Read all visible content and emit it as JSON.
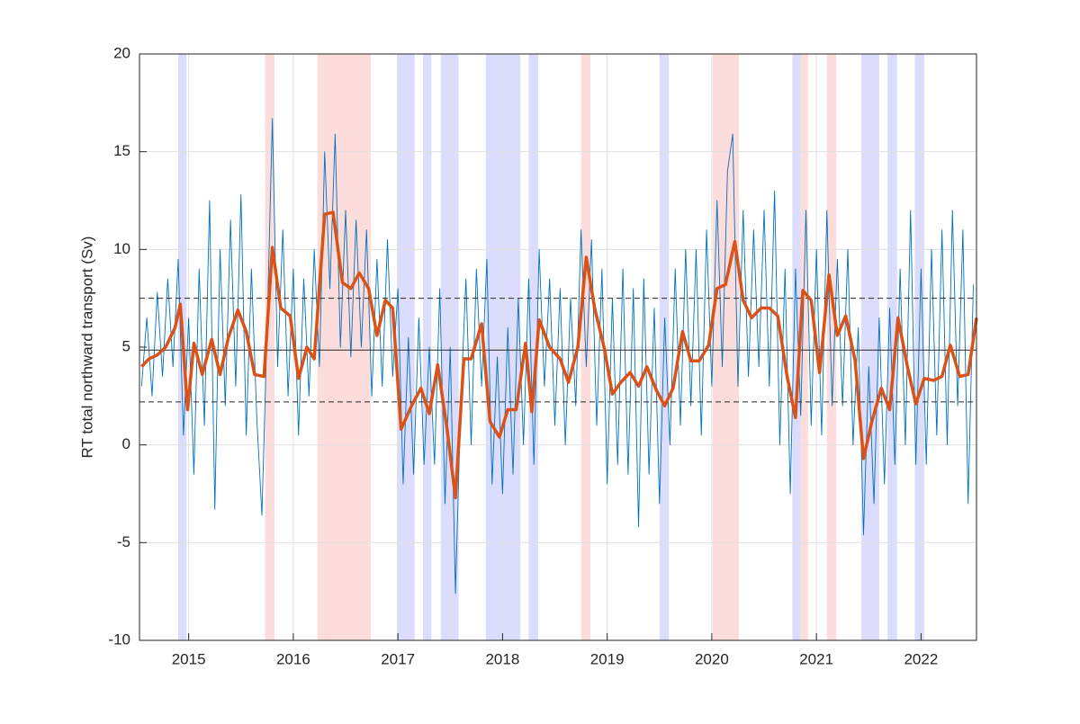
{
  "chart_data": {
    "type": "line",
    "y_label": "RT total northward transport (Sv)",
    "xlim": [
      2014.53,
      2022.53
    ],
    "xticks": [
      2015,
      2016,
      2017,
      2018,
      2019,
      2020,
      2021,
      2022
    ],
    "ylim": [
      -10,
      20
    ],
    "yticks": [
      -10,
      -5,
      0,
      5,
      10,
      15,
      20
    ],
    "grid": true,
    "reference_lines": [
      {
        "value": 4.85,
        "style": "solid",
        "color": "#262626"
      },
      {
        "value": 7.5,
        "style": "dashed",
        "color": "#262626"
      },
      {
        "value": 2.2,
        "style": "dashed",
        "color": "#262626"
      }
    ],
    "highlight_bands": [
      {
        "start": 2014.9,
        "end": 2014.98,
        "color": "#dcdcfc"
      },
      {
        "start": 2015.73,
        "end": 2015.82,
        "color": "#fddcdc"
      },
      {
        "start": 2016.23,
        "end": 2016.74,
        "color": "#fddcdc"
      },
      {
        "start": 2016.99,
        "end": 2017.16,
        "color": "#dcdcfc"
      },
      {
        "start": 2017.24,
        "end": 2017.32,
        "color": "#dcdcfc"
      },
      {
        "start": 2017.41,
        "end": 2017.58,
        "color": "#dcdcfc"
      },
      {
        "start": 2017.84,
        "end": 2018.17,
        "color": "#dcdcfc"
      },
      {
        "start": 2018.25,
        "end": 2018.34,
        "color": "#dcdcfc"
      },
      {
        "start": 2018.75,
        "end": 2018.84,
        "color": "#fddcdc"
      },
      {
        "start": 2019.5,
        "end": 2019.59,
        "color": "#dcdcfc"
      },
      {
        "start": 2020.01,
        "end": 2020.26,
        "color": "#fddcdc"
      },
      {
        "start": 2020.77,
        "end": 2020.85,
        "color": "#dcdcfc"
      },
      {
        "start": 2020.85,
        "end": 2020.92,
        "color": "#fddcdc"
      },
      {
        "start": 2021.1,
        "end": 2021.19,
        "color": "#fddcdc"
      },
      {
        "start": 2021.43,
        "end": 2021.6,
        "color": "#dcdcfc"
      },
      {
        "start": 2021.68,
        "end": 2021.77,
        "color": "#dcdcfc"
      },
      {
        "start": 2021.94,
        "end": 2022.03,
        "color": "#dcdcfc"
      }
    ],
    "series": [
      {
        "color": "#0072bd",
        "width": 0.9,
        "x": [
          2014.55,
          2014.6,
          2014.65,
          2014.7,
          2014.75,
          2014.8,
          2014.85,
          2014.9,
          2014.95,
          2015.0,
          2015.05,
          2015.1,
          2015.15,
          2015.2,
          2015.25,
          2015.3,
          2015.35,
          2015.4,
          2015.45,
          2015.5,
          2015.55,
          2015.6,
          2015.65,
          2015.7,
          2015.75,
          2015.8,
          2015.85,
          2015.9,
          2015.95,
          2016.0,
          2016.05,
          2016.1,
          2016.15,
          2016.2,
          2016.25,
          2016.3,
          2016.35,
          2016.4,
          2016.45,
          2016.5,
          2016.55,
          2016.6,
          2016.65,
          2016.7,
          2016.75,
          2016.8,
          2016.85,
          2016.9,
          2016.95,
          2017.0,
          2017.05,
          2017.1,
          2017.15,
          2017.2,
          2017.25,
          2017.3,
          2017.35,
          2017.4,
          2017.45,
          2017.5,
          2017.55,
          2017.6,
          2017.65,
          2017.7,
          2017.75,
          2017.8,
          2017.85,
          2017.9,
          2017.95,
          2018.0,
          2018.05,
          2018.1,
          2018.15,
          2018.2,
          2018.25,
          2018.3,
          2018.35,
          2018.4,
          2018.45,
          2018.5,
          2018.55,
          2018.6,
          2018.65,
          2018.7,
          2018.75,
          2018.8,
          2018.85,
          2018.9,
          2018.95,
          2019.0,
          2019.05,
          2019.1,
          2019.15,
          2019.2,
          2019.25,
          2019.3,
          2019.35,
          2019.4,
          2019.45,
          2019.5,
          2019.55,
          2019.6,
          2019.65,
          2019.7,
          2019.75,
          2019.8,
          2019.85,
          2019.9,
          2019.95,
          2020.0,
          2020.05,
          2020.1,
          2020.15,
          2020.2,
          2020.25,
          2020.3,
          2020.35,
          2020.4,
          2020.45,
          2020.5,
          2020.55,
          2020.6,
          2020.65,
          2020.7,
          2020.75,
          2020.8,
          2020.85,
          2020.9,
          2020.95,
          2021.0,
          2021.05,
          2021.1,
          2021.15,
          2021.2,
          2021.25,
          2021.3,
          2021.35,
          2021.4,
          2021.45,
          2021.5,
          2021.55,
          2021.6,
          2021.65,
          2021.7,
          2021.75,
          2021.8,
          2021.85,
          2021.9,
          2021.95,
          2022.0,
          2022.05,
          2022.1,
          2022.15,
          2022.2,
          2022.25,
          2022.3,
          2022.35,
          2022.4,
          2022.45,
          2022.5
        ],
        "values": [
          3,
          6.5,
          2.5,
          7.8,
          3.5,
          8.5,
          4,
          9.5,
          0.5,
          6.5,
          -1.5,
          9,
          1,
          12.5,
          -3.3,
          10,
          2,
          11.5,
          3,
          12.8,
          0.5,
          9,
          1.5,
          -3.6,
          6,
          16.7,
          4,
          11,
          2.5,
          9,
          0.5,
          8.5,
          2.5,
          10,
          4,
          15,
          8,
          15.9,
          5,
          12,
          4.5,
          11.5,
          5,
          11,
          2.5,
          9.5,
          3,
          10.5,
          3.5,
          8,
          -2,
          5.5,
          -1.5,
          6.5,
          -1,
          5,
          -1,
          8,
          -3,
          5,
          -7.6,
          2,
          8.5,
          0,
          9,
          3,
          9.5,
          -2,
          4.5,
          -2.5,
          6,
          -1.5,
          7.5,
          0,
          8.5,
          -1,
          10,
          3,
          8.5,
          1,
          8,
          0,
          7.5,
          2,
          11,
          4,
          10.5,
          1,
          9,
          -2,
          7.5,
          -1,
          9,
          -1.5,
          8,
          -4.2,
          8.5,
          -1.5,
          7,
          -3,
          6.5,
          0,
          9,
          1,
          10,
          2,
          10,
          0.5,
          11,
          3,
          12.5,
          4,
          14,
          15.9,
          3,
          12,
          3.5,
          11,
          4,
          12,
          3,
          13,
          0,
          9,
          -2.5,
          9,
          1.5,
          12,
          1,
          10,
          0.5,
          12,
          2,
          9.5,
          2,
          10,
          0,
          6,
          -4.6,
          4,
          -3,
          6.5,
          -2,
          7,
          -1,
          9,
          0,
          12,
          -1,
          9,
          -1,
          10,
          0.5,
          11,
          0,
          12,
          2,
          11,
          -3,
          8.2
        ]
      },
      {
        "color": "#d95319",
        "width": 3.5,
        "x": [
          2014.55,
          2014.62,
          2014.7,
          2014.78,
          2014.87,
          2014.92,
          2014.99,
          2015.05,
          2015.13,
          2015.22,
          2015.3,
          2015.38,
          2015.47,
          2015.55,
          2015.63,
          2015.72,
          2015.8,
          2015.88,
          2015.97,
          2016.05,
          2016.13,
          2016.2,
          2016.3,
          2016.38,
          2016.47,
          2016.55,
          2016.63,
          2016.72,
          2016.8,
          2016.88,
          2016.95,
          2017.03,
          2017.13,
          2017.22,
          2017.3,
          2017.38,
          2017.47,
          2017.55,
          2017.63,
          2017.7,
          2017.8,
          2017.88,
          2017.97,
          2018.05,
          2018.13,
          2018.22,
          2018.28,
          2018.35,
          2018.45,
          2018.55,
          2018.63,
          2018.72,
          2018.8,
          2018.88,
          2018.97,
          2019.05,
          2019.13,
          2019.22,
          2019.3,
          2019.38,
          2019.47,
          2019.55,
          2019.63,
          2019.72,
          2019.8,
          2019.88,
          2019.97,
          2020.05,
          2020.13,
          2020.22,
          2020.3,
          2020.38,
          2020.47,
          2020.55,
          2020.63,
          2020.72,
          2020.8,
          2020.87,
          2020.95,
          2021.03,
          2021.12,
          2021.2,
          2021.28,
          2021.37,
          2021.45,
          2021.53,
          2021.62,
          2021.7,
          2021.78,
          2021.87,
          2021.95,
          2022.03,
          2022.12,
          2022.2,
          2022.28,
          2022.37,
          2022.45,
          2022.53
        ],
        "values": [
          4.0,
          4.4,
          4.6,
          5.0,
          6.0,
          7.2,
          1.8,
          5.2,
          3.6,
          5.4,
          3.6,
          5.5,
          6.9,
          5.8,
          3.6,
          3.5,
          10.1,
          7.0,
          6.6,
          3.4,
          5.0,
          4.4,
          11.8,
          11.9,
          8.3,
          8.0,
          8.8,
          8.0,
          5.6,
          7.4,
          7.0,
          0.8,
          2.0,
          2.9,
          1.6,
          4.1,
          0.8,
          -2.7,
          4.4,
          4.4,
          6.2,
          1.2,
          0.4,
          1.8,
          1.8,
          5.2,
          1.7,
          6.4,
          5.0,
          4.4,
          3.2,
          5.0,
          9.6,
          7.0,
          5.0,
          2.6,
          3.2,
          3.7,
          3.0,
          4.0,
          2.8,
          2.0,
          2.9,
          5.8,
          4.3,
          4.3,
          5.1,
          8.0,
          8.2,
          10.4,
          7.4,
          6.5,
          7.0,
          7.0,
          6.6,
          3.5,
          1.4,
          7.9,
          7.4,
          3.7,
          8.7,
          5.6,
          6.6,
          4.3,
          -0.7,
          1.2,
          2.9,
          1.8,
          6.5,
          4.0,
          2.1,
          3.4,
          3.3,
          3.5,
          5.1,
          3.5,
          3.6,
          6.5
        ]
      }
    ]
  }
}
